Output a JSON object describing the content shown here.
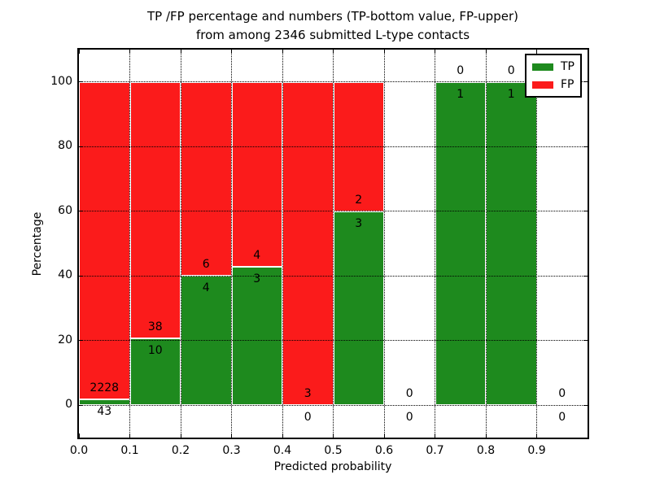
{
  "title": {
    "line1": "TP /FP percentage and numbers (TP-bottom value, FP-upper)",
    "line2": "from among 2346 submitted L-type contacts"
  },
  "axes": {
    "xlabel": "Predicted probability",
    "ylabel": "Percentage",
    "x_tick_labels": [
      "0.0",
      "0.1",
      "0.2",
      "0.3",
      "0.4",
      "0.5",
      "0.6",
      "0.7",
      "0.8",
      "0.9"
    ],
    "x_tick_values": [
      0,
      0.1,
      0.2,
      0.3,
      0.4,
      0.5,
      0.6,
      0.7,
      0.8,
      0.9
    ],
    "y_tick_labels": [
      "0",
      "20",
      "40",
      "60",
      "80",
      "100"
    ],
    "y_tick_values": [
      0,
      20,
      40,
      60,
      80,
      100
    ],
    "xlim": [
      0,
      1.0
    ],
    "ylim": [
      -10,
      110
    ],
    "grid": "dotted"
  },
  "legend": {
    "position": "upper right",
    "entries": [
      {
        "label": "TP",
        "color": "#1e8a1e"
      },
      {
        "label": "FP",
        "color": "#fb1b1b"
      }
    ]
  },
  "colors": {
    "tp": "#1e8a1e",
    "fp": "#fb1b1b",
    "bar_edge": "#ffffff",
    "text": "#000000",
    "axis": "#000000"
  },
  "chart_data": {
    "type": "bar",
    "stacked": true,
    "units": "percent",
    "total_contacts": 2346,
    "bin_width": 0.1,
    "note": "TP count labeled below segment boundary, FP count above; bars show TP/FP percentage split per predicted-probability bin",
    "bins": [
      {
        "x_start": 0.0,
        "x_end": 0.1,
        "tp_count": 43,
        "fp_count": 2228,
        "tp_pct": 1.9,
        "fp_pct": 98.1
      },
      {
        "x_start": 0.1,
        "x_end": 0.2,
        "tp_count": 10,
        "fp_count": 38,
        "tp_pct": 20.8,
        "fp_pct": 79.2
      },
      {
        "x_start": 0.2,
        "x_end": 0.3,
        "tp_count": 4,
        "fp_count": 6,
        "tp_pct": 40.0,
        "fp_pct": 60.0
      },
      {
        "x_start": 0.3,
        "x_end": 0.4,
        "tp_count": 3,
        "fp_count": 4,
        "tp_pct": 42.9,
        "fp_pct": 57.1
      },
      {
        "x_start": 0.4,
        "x_end": 0.5,
        "tp_count": 0,
        "fp_count": 3,
        "tp_pct": 0.0,
        "fp_pct": 100.0
      },
      {
        "x_start": 0.5,
        "x_end": 0.6,
        "tp_count": 3,
        "fp_count": 2,
        "tp_pct": 60.0,
        "fp_pct": 40.0
      },
      {
        "x_start": 0.6,
        "x_end": 0.7,
        "tp_count": 0,
        "fp_count": 0,
        "tp_pct": null,
        "fp_pct": null
      },
      {
        "x_start": 0.7,
        "x_end": 0.8,
        "tp_count": 1,
        "fp_count": 0,
        "tp_pct": 100.0,
        "fp_pct": 0.0
      },
      {
        "x_start": 0.8,
        "x_end": 0.9,
        "tp_count": 1,
        "fp_count": 0,
        "tp_pct": 100.0,
        "fp_pct": 0.0
      },
      {
        "x_start": 0.9,
        "x_end": 1.0,
        "tp_count": 0,
        "fp_count": 0,
        "tp_pct": null,
        "fp_pct": null
      }
    ]
  }
}
